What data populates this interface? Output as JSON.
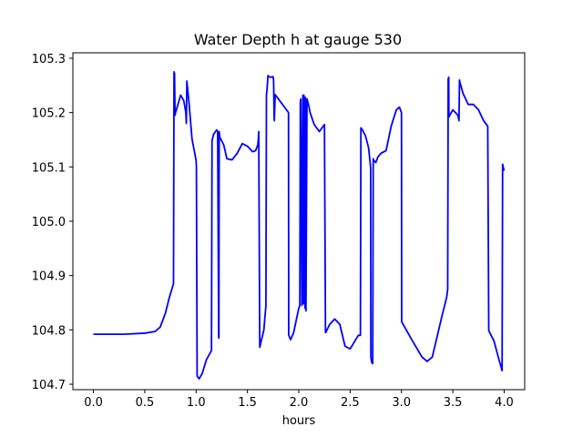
{
  "chart_data": {
    "type": "line",
    "title": "Water Depth h at gauge 530",
    "xlabel": "hours",
    "ylabel": "",
    "xlim": [
      -0.2,
      4.2
    ],
    "ylim": [
      104.69,
      105.31
    ],
    "xticks": [
      "0.0",
      "0.5",
      "1.0",
      "1.5",
      "2.0",
      "2.5",
      "3.0",
      "3.5",
      "4.0"
    ],
    "yticks": [
      "104.7",
      "104.8",
      "104.9",
      "105.0",
      "105.1",
      "105.2",
      "105.3"
    ],
    "grid": false,
    "legend": "none",
    "series_color": "#0000ff",
    "series": [
      {
        "x": [
          0.0,
          0.3,
          0.5,
          0.6,
          0.65,
          0.7,
          0.74,
          0.78,
          0.785,
          0.79,
          0.795,
          0.8,
          0.85,
          0.88,
          0.9,
          0.905,
          0.91,
          0.93,
          0.96,
          1.0,
          1.003,
          1.01,
          1.03,
          1.06,
          1.1,
          1.15,
          1.155,
          1.17,
          1.2,
          1.21,
          1.22,
          1.222,
          1.225,
          1.23,
          1.27,
          1.3,
          1.35,
          1.4,
          1.45,
          1.5,
          1.55,
          1.58,
          1.6,
          1.605,
          1.61,
          1.62,
          1.66,
          1.68,
          1.685,
          1.69,
          1.7,
          1.72,
          1.75,
          1.755,
          1.76,
          1.762,
          1.77,
          1.9,
          1.902,
          1.92,
          1.95,
          2.0,
          2.01,
          2.015,
          2.02,
          2.03,
          2.04,
          2.045,
          2.05,
          2.06,
          2.065,
          2.07,
          2.08,
          2.09,
          2.1,
          2.11,
          2.15,
          2.2,
          2.25,
          2.26,
          2.262,
          2.3,
          2.35,
          2.4,
          2.45,
          2.5,
          2.58,
          2.6,
          2.605,
          2.62,
          2.65,
          2.68,
          2.7,
          2.702,
          2.71,
          2.72,
          2.725,
          2.73,
          2.75,
          2.77,
          2.8,
          2.85,
          2.9,
          2.95,
          2.98,
          3.0,
          3.002,
          3.1,
          3.2,
          3.25,
          3.3,
          3.4,
          3.44,
          3.45,
          3.455,
          3.46,
          3.462,
          3.47,
          3.5,
          3.55,
          3.56,
          3.565,
          3.57,
          3.6,
          3.65,
          3.7,
          3.75,
          3.8,
          3.84,
          3.85,
          3.852,
          3.9,
          3.95,
          3.98,
          3.985,
          3.99,
          4.0
        ],
        "y": [
          104.792,
          104.792,
          104.794,
          104.797,
          104.805,
          104.83,
          104.86,
          104.885,
          105.275,
          105.272,
          105.195,
          105.2,
          105.232,
          105.222,
          105.2,
          105.18,
          105.258,
          105.22,
          105.152,
          105.112,
          105.1,
          104.715,
          104.71,
          104.72,
          104.745,
          104.762,
          105.148,
          105.16,
          105.168,
          105.165,
          104.787,
          104.785,
          105.165,
          105.155,
          105.14,
          105.115,
          105.113,
          105.125,
          105.143,
          105.138,
          105.128,
          105.13,
          105.14,
          105.148,
          105.165,
          104.768,
          104.8,
          104.845,
          105.232,
          105.24,
          105.268,
          105.265,
          105.266,
          105.258,
          105.19,
          105.185,
          105.233,
          105.2,
          104.79,
          104.782,
          104.795,
          104.84,
          104.845,
          105.22,
          105.225,
          104.845,
          105.232,
          104.848,
          105.232,
          104.84,
          105.228,
          104.835,
          105.225,
          105.218,
          105.21,
          105.2,
          105.178,
          105.165,
          105.178,
          104.795,
          104.795,
          104.81,
          104.82,
          104.81,
          104.77,
          104.765,
          104.79,
          104.79,
          105.172,
          105.168,
          105.157,
          105.135,
          105.098,
          104.75,
          104.74,
          104.738,
          105.115,
          105.112,
          105.108,
          105.118,
          105.125,
          105.13,
          105.175,
          105.205,
          105.21,
          105.2,
          104.815,
          104.782,
          104.75,
          104.742,
          104.75,
          104.83,
          104.86,
          104.875,
          105.262,
          105.265,
          105.192,
          105.195,
          105.205,
          105.195,
          105.185,
          105.26,
          105.255,
          105.235,
          105.215,
          105.215,
          105.205,
          105.185,
          105.175,
          104.8,
          104.798,
          104.78,
          104.745,
          104.725,
          105.105,
          105.1,
          105.093
        ]
      }
    ]
  }
}
